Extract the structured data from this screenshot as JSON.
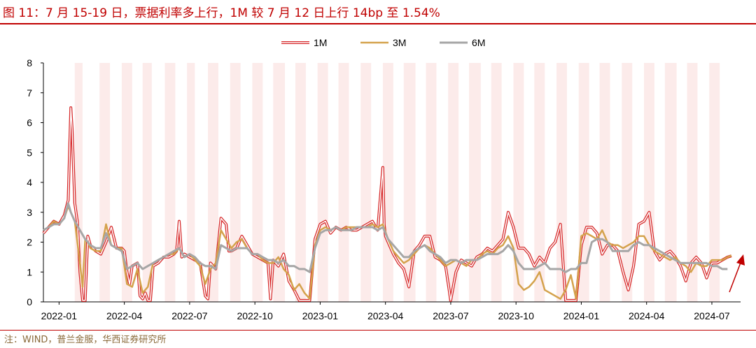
{
  "title": "图 11：7 月 15-19 日，票据利率多上行，1M 较 7 月 12 日上行 14bp 至 1.54%",
  "source": "注：WIND，普兰金服，华西证券研究所",
  "colors": {
    "title": "#c00000",
    "band": "#fcebea",
    "s1m": "#d62728",
    "s3m": "#d4a24c",
    "s6m": "#a6a6a6",
    "arrow": "#c00000"
  },
  "chart_data": {
    "type": "line",
    "xlim": [
      2021.94,
      2024.61
    ],
    "ylim": [
      0,
      8
    ],
    "ytick_labels": [
      "0",
      "1",
      "2",
      "3",
      "4",
      "5",
      "6",
      "7",
      "8"
    ],
    "xtick_labels": [
      {
        "label": "2022-01",
        "x": 2022.0
      },
      {
        "label": "2022-04",
        "x": 2022.25
      },
      {
        "label": "2022-07",
        "x": 2022.5
      },
      {
        "label": "2022-10",
        "x": 2022.75
      },
      {
        "label": "2023-01",
        "x": 2023.0
      },
      {
        "label": "2023-04",
        "x": 2023.25
      },
      {
        "label": "2023-07",
        "x": 2023.5
      },
      {
        "label": "2023-10",
        "x": 2023.75
      },
      {
        "label": "2024-01",
        "x": 2024.0
      },
      {
        "label": "2024-04",
        "x": 2024.25
      },
      {
        "label": "2024-07",
        "x": 2024.5
      }
    ],
    "month_end_bands": [
      [
        2022.06,
        2022.09
      ],
      [
        2022.155,
        2022.195
      ],
      [
        2022.24,
        2022.28
      ],
      [
        2022.32,
        2022.355
      ],
      [
        2022.405,
        2022.445
      ],
      [
        2022.49,
        2022.52
      ],
      [
        2022.57,
        2022.61
      ],
      [
        2022.655,
        2022.695
      ],
      [
        2022.74,
        2022.78
      ],
      [
        2022.82,
        2022.865
      ],
      [
        2022.905,
        2022.945
      ],
      [
        2022.99,
        2023.03
      ],
      [
        2023.07,
        2023.11
      ],
      [
        2023.155,
        2023.195
      ],
      [
        2023.24,
        2023.28
      ],
      [
        2023.32,
        2023.365
      ],
      [
        2023.405,
        2023.445
      ],
      [
        2023.49,
        2023.53
      ],
      [
        2023.57,
        2023.615
      ],
      [
        2023.655,
        2023.695
      ],
      [
        2023.74,
        2023.78
      ],
      [
        2023.82,
        2023.86
      ],
      [
        2023.905,
        2023.945
      ],
      [
        2023.99,
        2024.03
      ],
      [
        2024.07,
        2024.11
      ],
      [
        2024.155,
        2024.195
      ],
      [
        2024.24,
        2024.28
      ],
      [
        2024.32,
        2024.365
      ],
      [
        2024.405,
        2024.445
      ],
      [
        2024.49,
        2024.53
      ]
    ],
    "legend_position": "top-center",
    "series": [
      {
        "name": "1M",
        "x": [
          2021.94,
          2021.96,
          2021.98,
          2022.0,
          2022.02,
          2022.035,
          2022.045,
          2022.05,
          2022.06,
          2022.07,
          2022.08,
          2022.09,
          2022.1,
          2022.11,
          2022.12,
          2022.14,
          2022.16,
          2022.18,
          2022.2,
          2022.22,
          2022.24,
          2022.25,
          2022.26,
          2022.27,
          2022.28,
          2022.3,
          2022.31,
          2022.32,
          2022.33,
          2022.34,
          2022.35,
          2022.36,
          2022.38,
          2022.4,
          2022.42,
          2022.44,
          2022.45,
          2022.46,
          2022.47,
          2022.48,
          2022.5,
          2022.52,
          2022.54,
          2022.56,
          2022.57,
          2022.58,
          2022.6,
          2022.62,
          2022.64,
          2022.65,
          2022.66,
          2022.68,
          2022.7,
          2022.72,
          2022.74,
          2022.76,
          2022.78,
          2022.8,
          2022.81,
          2022.82,
          2022.84,
          2022.86,
          2022.88,
          2022.9,
          2022.92,
          2022.94,
          2022.96,
          2022.98,
          2023.0,
          2023.02,
          2023.04,
          2023.06,
          2023.08,
          2023.1,
          2023.12,
          2023.14,
          2023.16,
          2023.18,
          2023.2,
          2023.22,
          2023.24,
          2023.245,
          2023.25,
          2023.26,
          2023.28,
          2023.3,
          2023.32,
          2023.34,
          2023.36,
          2023.38,
          2023.4,
          2023.42,
          2023.44,
          2023.46,
          2023.48,
          2023.5,
          2023.52,
          2023.54,
          2023.56,
          2023.58,
          2023.6,
          2023.62,
          2023.64,
          2023.66,
          2023.68,
          2023.7,
          2023.72,
          2023.74,
          2023.76,
          2023.78,
          2023.8,
          2023.82,
          2023.84,
          2023.86,
          2023.88,
          2023.9,
          2023.92,
          2023.94,
          2023.96,
          2023.98,
          2024.0,
          2024.02,
          2024.04,
          2024.06,
          2024.08,
          2024.1,
          2024.12,
          2024.14,
          2024.16,
          2024.18,
          2024.2,
          2024.22,
          2024.24,
          2024.26,
          2024.28,
          2024.3,
          2024.32,
          2024.34,
          2024.36,
          2024.38,
          2024.4,
          2024.42,
          2024.44,
          2024.46,
          2024.48,
          2024.5,
          2024.52,
          2024.54,
          2024.56,
          2024.575
        ],
        "y": [
          2.3,
          2.5,
          2.7,
          2.6,
          2.9,
          3.4,
          6.5,
          5.8,
          3.3,
          2.7,
          1.0,
          0.05,
          0.05,
          2.2,
          1.9,
          1.7,
          1.6,
          2.0,
          2.5,
          1.8,
          1.8,
          1.7,
          1.0,
          0.6,
          1.2,
          1.3,
          0.2,
          0.1,
          0.3,
          0.05,
          0.05,
          1.2,
          1.3,
          1.5,
          1.5,
          1.6,
          1.7,
          2.7,
          1.5,
          1.6,
          1.5,
          1.4,
          1.3,
          0.2,
          0.1,
          1.3,
          1.1,
          2.8,
          2.6,
          1.7,
          1.7,
          1.8,
          2.2,
          1.9,
          1.6,
          1.5,
          1.4,
          1.3,
          0.1,
          1.4,
          1.2,
          1.6,
          0.7,
          0.4,
          0.05,
          0.05,
          0.05,
          2.1,
          2.6,
          2.7,
          2.3,
          2.5,
          2.4,
          2.5,
          2.4,
          2.4,
          2.5,
          2.6,
          2.7,
          2.4,
          4.5,
          2.6,
          2.2,
          2.0,
          1.6,
          1.3,
          1.1,
          0.5,
          1.7,
          1.9,
          2.2,
          2.2,
          1.5,
          1.4,
          1.2,
          0.05,
          1.0,
          1.4,
          1.3,
          1.2,
          1.5,
          1.6,
          1.8,
          1.7,
          1.9,
          2.1,
          3.0,
          2.5,
          1.8,
          1.8,
          1.6,
          1.2,
          1.5,
          1.3,
          1.8,
          2.0,
          2.6,
          0.05,
          0.05,
          0.05,
          1.9,
          2.5,
          2.5,
          2.3,
          1.6,
          1.9,
          1.9,
          1.7,
          1.0,
          0.4,
          1.2,
          2.6,
          2.7,
          3.0,
          1.7,
          1.4,
          1.6,
          1.7,
          1.5,
          1.2,
          0.7,
          1.3,
          1.5,
          1.3,
          0.8,
          1.3,
          1.3,
          1.4,
          1.5,
          1.54
        ]
      },
      {
        "name": "3M",
        "x": [
          2021.94,
          2021.96,
          2021.98,
          2022.0,
          2022.02,
          2022.035,
          2022.045,
          2022.06,
          2022.08,
          2022.09,
          2022.1,
          2022.11,
          2022.12,
          2022.14,
          2022.16,
          2022.18,
          2022.2,
          2022.22,
          2022.24,
          2022.26,
          2022.28,
          2022.3,
          2022.32,
          2022.34,
          2022.36,
          2022.38,
          2022.4,
          2022.42,
          2022.44,
          2022.46,
          2022.48,
          2022.5,
          2022.52,
          2022.54,
          2022.56,
          2022.58,
          2022.6,
          2022.62,
          2022.64,
          2022.66,
          2022.68,
          2022.7,
          2022.72,
          2022.74,
          2022.76,
          2022.78,
          2022.8,
          2022.82,
          2022.84,
          2022.86,
          2022.88,
          2022.9,
          2022.92,
          2022.94,
          2022.96,
          2022.98,
          2023.0,
          2023.02,
          2023.04,
          2023.06,
          2023.08,
          2023.1,
          2023.12,
          2023.14,
          2023.16,
          2023.18,
          2023.2,
          2023.22,
          2023.24,
          2023.26,
          2023.28,
          2023.3,
          2023.32,
          2023.34,
          2023.36,
          2023.38,
          2023.4,
          2023.42,
          2023.44,
          2023.46,
          2023.48,
          2023.5,
          2023.52,
          2023.54,
          2023.56,
          2023.58,
          2023.6,
          2023.62,
          2023.64,
          2023.66,
          2023.68,
          2023.7,
          2023.72,
          2023.74,
          2023.76,
          2023.78,
          2023.8,
          2023.82,
          2023.84,
          2023.86,
          2023.88,
          2023.9,
          2023.92,
          2023.94,
          2023.96,
          2023.98,
          2024.0,
          2024.02,
          2024.04,
          2024.06,
          2024.08,
          2024.1,
          2024.12,
          2024.14,
          2024.16,
          2024.18,
          2024.2,
          2024.22,
          2024.24,
          2024.26,
          2024.28,
          2024.3,
          2024.32,
          2024.34,
          2024.36,
          2024.38,
          2024.4,
          2024.42,
          2024.44,
          2024.46,
          2024.48,
          2024.5,
          2024.52,
          2024.54,
          2024.56,
          2024.575
        ],
        "y": [
          2.4,
          2.5,
          2.7,
          2.6,
          2.8,
          3.2,
          3.0,
          2.7,
          1.3,
          0.5,
          2.1,
          2.0,
          1.8,
          1.7,
          1.7,
          2.6,
          1.9,
          1.8,
          1.8,
          0.6,
          0.5,
          1.1,
          0.3,
          0.5,
          1.3,
          1.4,
          1.5,
          1.6,
          1.6,
          1.8,
          1.5,
          1.6,
          1.4,
          1.2,
          0.6,
          1.1,
          1.3,
          2.4,
          2.1,
          1.8,
          2.0,
          2.1,
          1.8,
          1.6,
          1.6,
          1.4,
          1.3,
          1.3,
          1.5,
          1.1,
          0.9,
          0.4,
          0.6,
          0.3,
          0.1,
          1.9,
          2.4,
          2.5,
          2.4,
          2.5,
          2.4,
          2.5,
          2.5,
          2.5,
          2.5,
          2.5,
          2.6,
          2.5,
          2.6,
          2.1,
          1.7,
          1.5,
          1.3,
          1.4,
          1.6,
          1.8,
          1.9,
          1.8,
          1.6,
          1.4,
          1.2,
          1.3,
          1.4,
          1.3,
          1.2,
          1.4,
          1.4,
          1.6,
          1.7,
          1.6,
          1.8,
          1.9,
          2.2,
          1.8,
          0.6,
          0.4,
          0.5,
          0.7,
          1.0,
          0.4,
          0.3,
          0.2,
          0.1,
          0.4,
          0.9,
          0.1,
          2.2,
          2.3,
          2.2,
          2.1,
          2.4,
          2.0,
          1.9,
          1.9,
          1.8,
          1.9,
          2.0,
          2.2,
          2.2,
          1.9,
          1.7,
          1.6,
          1.5,
          1.4,
          1.5,
          1.3,
          1.2,
          1.0,
          1.3,
          1.2,
          1.2,
          1.4,
          1.4,
          1.4,
          1.5,
          1.55
        ]
      },
      {
        "name": "6M",
        "x": [
          2021.94,
          2021.96,
          2021.98,
          2022.0,
          2022.02,
          2022.035,
          2022.045,
          2022.06,
          2022.08,
          2022.1,
          2022.12,
          2022.14,
          2022.16,
          2022.18,
          2022.2,
          2022.22,
          2022.24,
          2022.26,
          2022.28,
          2022.3,
          2022.32,
          2022.34,
          2022.36,
          2022.38,
          2022.4,
          2022.42,
          2022.44,
          2022.46,
          2022.48,
          2022.5,
          2022.52,
          2022.54,
          2022.56,
          2022.58,
          2022.6,
          2022.62,
          2022.64,
          2022.66,
          2022.68,
          2022.7,
          2022.72,
          2022.74,
          2022.76,
          2022.78,
          2022.8,
          2022.82,
          2022.84,
          2022.86,
          2022.88,
          2022.9,
          2022.92,
          2022.94,
          2022.96,
          2022.98,
          2023.0,
          2023.02,
          2023.04,
          2023.06,
          2023.08,
          2023.1,
          2023.12,
          2023.14,
          2023.16,
          2023.18,
          2023.2,
          2023.22,
          2023.24,
          2023.26,
          2023.28,
          2023.3,
          2023.32,
          2023.34,
          2023.36,
          2023.38,
          2023.4,
          2023.42,
          2023.44,
          2023.46,
          2023.48,
          2023.5,
          2023.52,
          2023.54,
          2023.56,
          2023.58,
          2023.6,
          2023.62,
          2023.64,
          2023.66,
          2023.68,
          2023.7,
          2023.72,
          2023.74,
          2023.76,
          2023.78,
          2023.8,
          2023.82,
          2023.84,
          2023.86,
          2023.88,
          2023.9,
          2023.92,
          2023.94,
          2023.96,
          2023.98,
          2024.0,
          2024.02,
          2024.04,
          2024.06,
          2024.08,
          2024.1,
          2024.12,
          2024.14,
          2024.16,
          2024.18,
          2024.2,
          2024.22,
          2024.24,
          2024.26,
          2024.28,
          2024.3,
          2024.32,
          2024.34,
          2024.36,
          2024.38,
          2024.4,
          2024.42,
          2024.44,
          2024.46,
          2024.48,
          2024.5,
          2024.52,
          2024.54,
          2024.56
        ],
        "y": [
          2.4,
          2.5,
          2.6,
          2.6,
          2.8,
          3.3,
          3.0,
          2.7,
          2.4,
          2.1,
          1.9,
          1.8,
          1.8,
          2.3,
          1.9,
          1.8,
          1.7,
          1.1,
          1.2,
          1.3,
          1.1,
          1.2,
          1.3,
          1.4,
          1.5,
          1.6,
          1.7,
          1.8,
          1.5,
          1.6,
          1.5,
          1.3,
          1.2,
          1.2,
          1.1,
          1.9,
          1.8,
          1.7,
          1.8,
          1.8,
          1.8,
          1.6,
          1.6,
          1.5,
          1.4,
          1.4,
          1.3,
          1.4,
          1.2,
          1.2,
          1.1,
          1.1,
          1.0,
          1.8,
          2.3,
          2.4,
          2.4,
          2.5,
          2.4,
          2.4,
          2.4,
          2.5,
          2.5,
          2.5,
          2.5,
          2.4,
          2.5,
          2.1,
          1.9,
          1.7,
          1.5,
          1.5,
          1.7,
          1.8,
          1.9,
          1.7,
          1.6,
          1.5,
          1.3,
          1.4,
          1.4,
          1.3,
          1.4,
          1.4,
          1.4,
          1.5,
          1.6,
          1.6,
          1.6,
          1.7,
          1.9,
          1.7,
          1.3,
          1.1,
          1.1,
          1.1,
          1.2,
          1.3,
          1.1,
          1.1,
          1.1,
          1.0,
          1.1,
          1.1,
          1.3,
          1.3,
          2.0,
          2.1,
          2.1,
          2.0,
          1.7,
          1.7,
          1.7,
          1.7,
          1.9,
          2.0,
          1.9,
          1.9,
          1.8,
          1.7,
          1.6,
          1.5,
          1.4,
          1.3,
          1.3,
          1.3,
          1.3,
          1.3,
          1.3,
          1.2,
          1.2,
          1.1,
          1.1
        ]
      }
    ]
  }
}
